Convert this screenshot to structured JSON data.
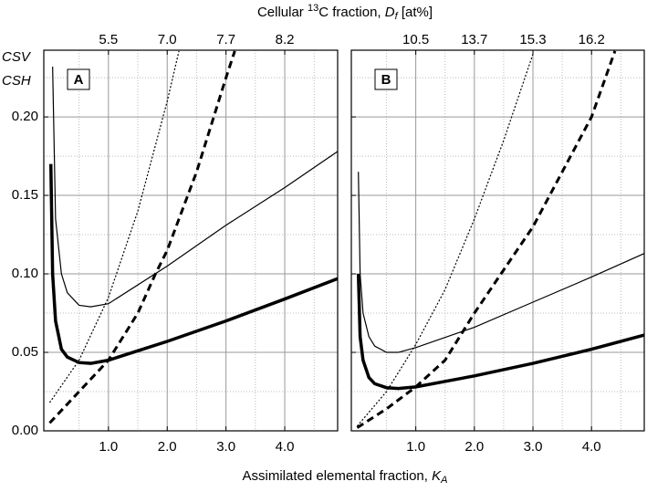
{
  "x2label": {
    "text1": "Cellular ",
    "sup": "13",
    "text2": "C fraction, ",
    "var": "D",
    "sub": "f",
    "text3": " [at%]"
  },
  "xlabel": {
    "text": "Assimilated elemental fraction, ",
    "var": "K",
    "sub": "A"
  },
  "ylabels": [
    "CSV",
    "CSH"
  ],
  "chart_data": [
    {
      "type": "line",
      "panel_label": "A",
      "xlim": [
        -0.1,
        4.9
      ],
      "ylim": [
        0,
        0.2425
      ],
      "xticks": [
        {
          "value": 1,
          "label": "1.0"
        },
        {
          "value": 2,
          "label": "2.0"
        },
        {
          "value": 3,
          "label": "3.0"
        },
        {
          "value": 4,
          "label": "4.0"
        }
      ],
      "xminorticks": [
        0.5,
        1.5,
        2.5,
        3.5,
        4.5
      ],
      "yticks": [
        {
          "value": 0,
          "label": "0.00"
        },
        {
          "value": 0.05,
          "label": "0.05"
        },
        {
          "value": 0.1,
          "label": "0.10"
        },
        {
          "value": 0.15,
          "label": "0.15"
        },
        {
          "value": 0.2,
          "label": "0.20"
        }
      ],
      "yminorticks": [
        0.025,
        0.075,
        0.125,
        0.175,
        0.225
      ],
      "show_ytick_labels": true,
      "x2ticks": [
        5.5,
        {
          "value": 7,
          "label": "7.0"
        },
        7.7,
        8.2
      ],
      "x2tick_at": [
        1,
        2,
        3,
        4
      ],
      "grid": true,
      "series": [
        {
          "color": "#000000",
          "width": 3.5,
          "dash": "none",
          "x": [
            0.02,
            0.05,
            0.1,
            0.2,
            0.3,
            0.5,
            0.7,
            1.0,
            1.5,
            2.0,
            3.0,
            4.0,
            4.9
          ],
          "values": [
            0.17,
            0.1,
            0.07,
            0.052,
            0.047,
            0.0435,
            0.043,
            0.045,
            0.051,
            0.057,
            0.07,
            0.084,
            0.097
          ]
        },
        {
          "color": "#000000",
          "width": 1.2,
          "dash": "none",
          "x": [
            0.05,
            0.1,
            0.2,
            0.3,
            0.5,
            0.7,
            1.0,
            2.0,
            3.0,
            4.0,
            4.9
          ],
          "values": [
            0.232,
            0.135,
            0.1,
            0.088,
            0.08,
            0.079,
            0.081,
            0.105,
            0.131,
            0.155,
            0.178
          ]
        },
        {
          "color": "#000000",
          "width": 1.2,
          "dash": "2,2",
          "x": [
            0,
            0.5,
            1.0,
            1.5,
            2.0,
            2.2
          ],
          "values": [
            0.018,
            0.045,
            0.085,
            0.14,
            0.21,
            0.242
          ]
        },
        {
          "color": "#000000",
          "width": 3,
          "dash": "8,5",
          "x": [
            0,
            0.5,
            1.0,
            1.5,
            1.8,
            2.0,
            2.5,
            3.0,
            3.15
          ],
          "values": [
            0.005,
            0.025,
            0.045,
            0.075,
            0.1,
            0.115,
            0.165,
            0.225,
            0.242
          ]
        }
      ]
    },
    {
      "type": "line",
      "panel_label": "B",
      "xlim": [
        -0.1,
        4.9
      ],
      "ylim": [
        0,
        0.2425
      ],
      "xticks": [
        {
          "value": 1,
          "label": "1.0"
        },
        {
          "value": 2,
          "label": "2.0"
        },
        {
          "value": 3,
          "label": "3.0"
        },
        {
          "value": 4,
          "label": "4.0"
        }
      ],
      "xminorticks": [
        0.5,
        1.5,
        2.5,
        3.5,
        4.5
      ],
      "yticks": [
        0,
        0.05,
        0.1,
        0.15,
        0.2
      ],
      "yminorticks": [
        0.025,
        0.075,
        0.125,
        0.175,
        0.225
      ],
      "show_ytick_labels": false,
      "x2ticks": [
        10.5,
        13.7,
        15.3,
        16.2
      ],
      "x2tick_at": [
        1,
        2,
        3,
        4
      ],
      "grid": true,
      "series": [
        {
          "color": "#000000",
          "width": 3.5,
          "dash": "none",
          "x": [
            0.02,
            0.05,
            0.1,
            0.2,
            0.3,
            0.5,
            0.7,
            1.0,
            2.0,
            3.0,
            4.0,
            4.9
          ],
          "values": [
            0.1,
            0.06,
            0.045,
            0.034,
            0.03,
            0.0275,
            0.027,
            0.028,
            0.035,
            0.043,
            0.052,
            0.061
          ]
        },
        {
          "color": "#000000",
          "width": 1.2,
          "dash": "none",
          "x": [
            0.02,
            0.05,
            0.1,
            0.2,
            0.3,
            0.5,
            0.7,
            1.0,
            2.0,
            3.0,
            4.0,
            4.9
          ],
          "values": [
            0.165,
            0.1,
            0.075,
            0.06,
            0.054,
            0.05,
            0.05,
            0.053,
            0.066,
            0.082,
            0.098,
            0.113
          ]
        },
        {
          "color": "#000000",
          "width": 1.2,
          "dash": "2,2",
          "x": [
            0,
            0.5,
            1.0,
            1.5,
            2.0,
            2.5,
            3.0
          ],
          "values": [
            0.003,
            0.025,
            0.055,
            0.09,
            0.135,
            0.185,
            0.24
          ]
        },
        {
          "color": "#000000",
          "width": 3,
          "dash": "8,5",
          "x": [
            0,
            0.5,
            1.0,
            1.5,
            1.8,
            2.0,
            3.0,
            4.0,
            4.4
          ],
          "values": [
            0.002,
            0.014,
            0.028,
            0.045,
            0.063,
            0.075,
            0.13,
            0.2,
            0.242
          ]
        }
      ]
    }
  ]
}
